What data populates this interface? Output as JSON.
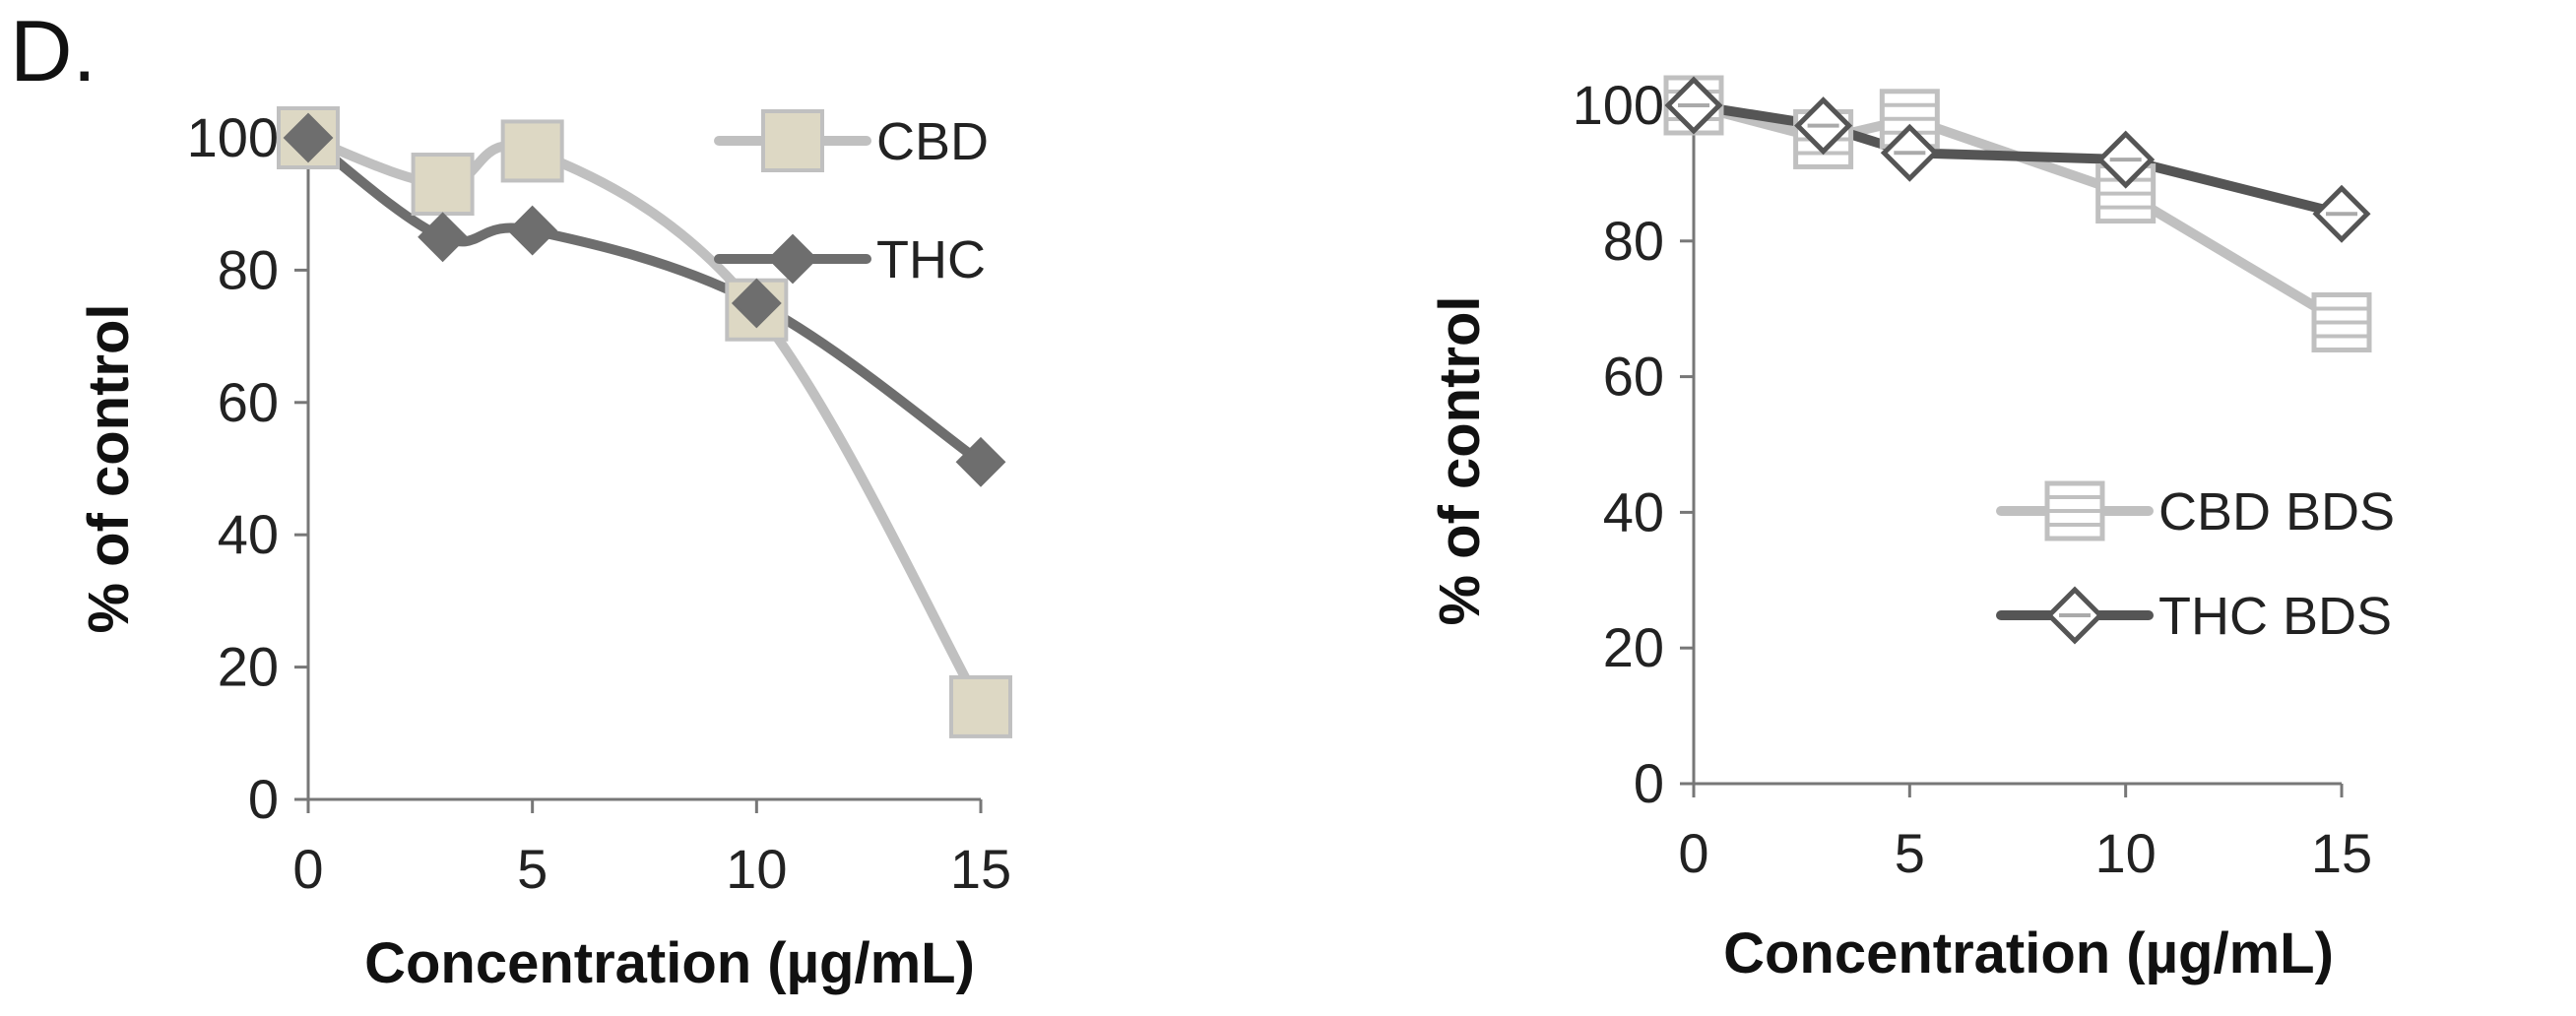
{
  "panel_label": "D.",
  "chart_data": [
    {
      "type": "line",
      "xlabel": "Concentration (µg/mL)",
      "ylabel": "% of control",
      "x_ticks": [
        0,
        5,
        10,
        15
      ],
      "y_ticks": [
        0,
        20,
        40,
        60,
        80,
        100
      ],
      "xlim": [
        0,
        15
      ],
      "ylim": [
        0,
        100
      ],
      "grid": false,
      "legend_position": "top-right",
      "series": [
        {
          "name": "CBD",
          "color": "#c0c0c0",
          "marker": "square-filled",
          "marker_fill": "#ddd8c4",
          "smooth": true,
          "x": [
            0,
            3,
            5,
            10,
            15
          ],
          "y": [
            100,
            93,
            98,
            74,
            14
          ]
        },
        {
          "name": "THC",
          "color": "#6e6e6e",
          "marker": "diamond-filled",
          "marker_fill": "#6e6e6e",
          "smooth": true,
          "x": [
            0,
            3,
            5,
            10,
            15
          ],
          "y": [
            100,
            85,
            86,
            75,
            51
          ]
        }
      ]
    },
    {
      "type": "line",
      "xlabel": "Concentration (µg/mL)",
      "ylabel": "% of control",
      "x_ticks": [
        0,
        5,
        10,
        15
      ],
      "y_ticks": [
        0,
        20,
        40,
        60,
        80,
        100
      ],
      "xlim": [
        0,
        15
      ],
      "ylim": [
        0,
        100
      ],
      "grid": false,
      "legend_position": "bottom-right",
      "series": [
        {
          "name": "CBD BDS",
          "color": "#c0c0c0",
          "marker": "square-striped",
          "marker_fill": "#ffffff",
          "smooth": false,
          "x": [
            0,
            3,
            5,
            10,
            15
          ],
          "y": [
            100,
            95,
            98,
            87,
            68
          ]
        },
        {
          "name": "THC BDS",
          "color": "#555555",
          "marker": "diamond-open",
          "marker_fill": "#ffffff",
          "smooth": false,
          "x": [
            0,
            3,
            5,
            10,
            15
          ],
          "y": [
            100,
            97,
            93,
            92,
            84
          ]
        }
      ]
    }
  ]
}
